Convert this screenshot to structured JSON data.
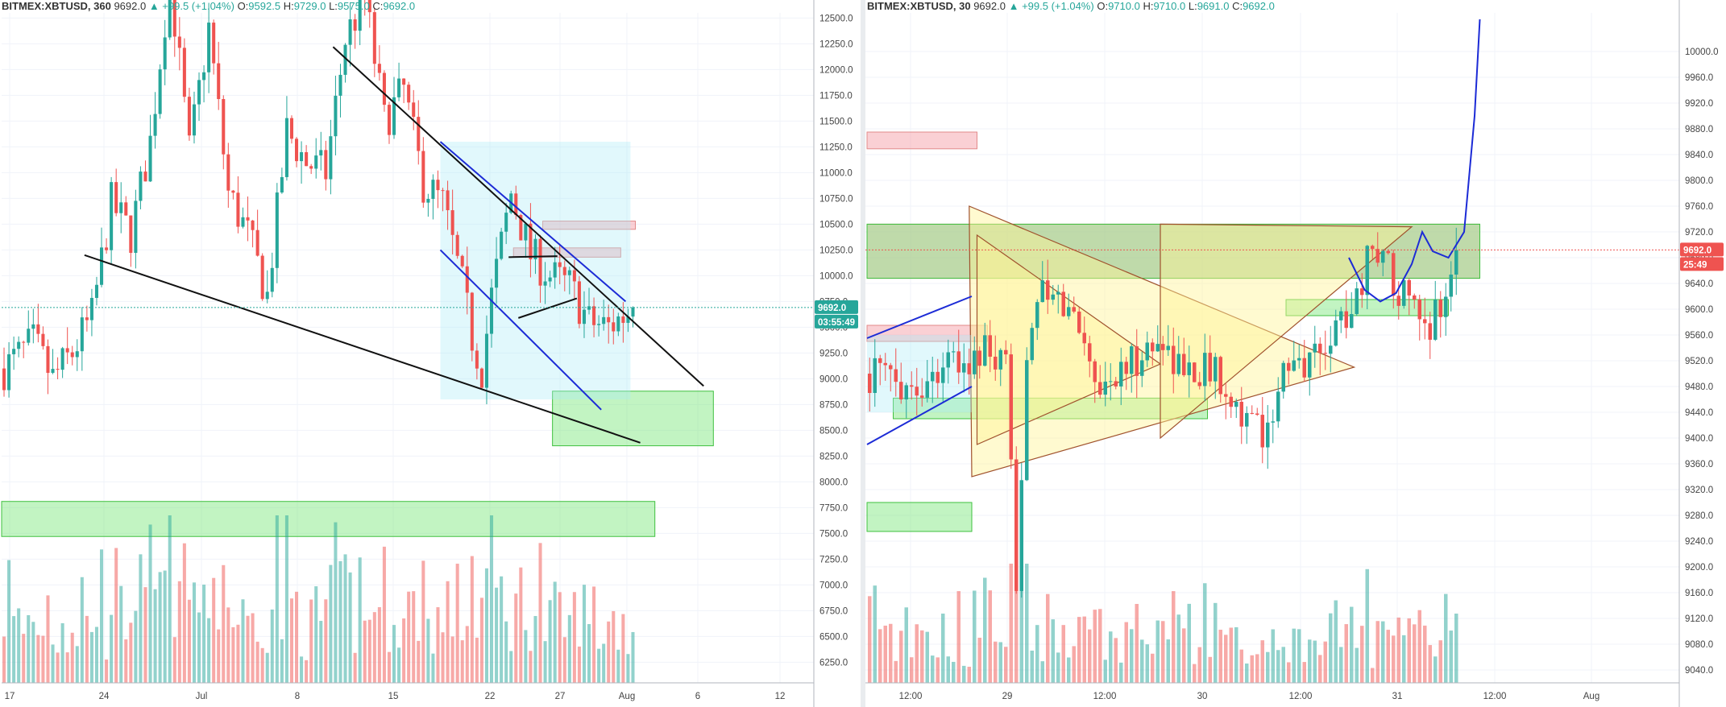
{
  "colors": {
    "up": "#26a69a",
    "down": "#ef5350",
    "grid": "#f0f3fa",
    "axis": "#b2b5be",
    "zone_green": "#7ee27e",
    "zone_red": "#f7a8a8"
  },
  "left": {
    "header": {
      "symbol": "BITMEX:XBTUSD, 360",
      "last": "9692.0",
      "change": "▲ +99.5 (+1.04%)",
      "o_label": "O:",
      "o": "9592.5",
      "h_label": "H:",
      "h": "9729.0",
      "l_label": "L:",
      "l": "9575.0",
      "c_label": "C:",
      "c": "9692.0"
    },
    "price_tag": "9692.0",
    "timer_tag": "03:55:49"
  },
  "right": {
    "header": {
      "symbol": "BITMEX:XBTUSD, 30",
      "last": "9692.0",
      "change": "▲ +99.5 (+1.04%)",
      "o_label": "O:",
      "o": "9710.0",
      "h_label": "H:",
      "h": "9710.0",
      "l_label": "L:",
      "l": "9691.0",
      "c_label": "C:",
      "c": "9692.0"
    },
    "price_tag": "9692.0",
    "timer_tag": "25:49"
  },
  "chart_data": [
    {
      "type": "candlestick",
      "timeframe": "360",
      "ylim": [
        6050,
        12550
      ],
      "y_ticks": [
        "12500.0",
        "12250.0",
        "12000.0",
        "11750.0",
        "11500.0",
        "11250.0",
        "11000.0",
        "10750.0",
        "10500.0",
        "10250.0",
        "10000.0",
        "9750.0",
        "9500.0",
        "9250.0",
        "9000.0",
        "8750.0",
        "8500.0",
        "8250.0",
        "8000.0",
        "7750.0",
        "7500.0",
        "7250.0",
        "7000.0",
        "6750.0",
        "6500.0",
        "6250.0"
      ],
      "x_ticks": [
        "17",
        "24",
        "Jul",
        "8",
        "15",
        "22",
        "27",
        "Aug",
        "6",
        "12"
      ],
      "close_path": [
        [
          0,
          9100
        ],
        [
          6,
          9350
        ],
        [
          10,
          9000
        ],
        [
          14,
          9250
        ],
        [
          18,
          9600
        ],
        [
          22,
          10700
        ],
        [
          26,
          10400
        ],
        [
          30,
          11300
        ],
        [
          34,
          12900
        ],
        [
          38,
          11200
        ],
        [
          42,
          12400
        ],
        [
          46,
          10800
        ],
        [
          50,
          10400
        ],
        [
          54,
          9800
        ],
        [
          58,
          11400
        ],
        [
          62,
          11100
        ],
        [
          66,
          11000
        ],
        [
          70,
          12300
        ],
        [
          74,
          12700
        ],
        [
          78,
          11500
        ],
        [
          82,
          11800
        ],
        [
          86,
          10900
        ],
        [
          90,
          10700
        ],
        [
          94,
          9900
        ],
        [
          96,
          9400
        ],
        [
          98,
          9100
        ],
        [
          100,
          9800
        ],
        [
          104,
          10800
        ],
        [
          108,
          10200
        ],
        [
          112,
          10000
        ],
        [
          116,
          9900
        ],
        [
          120,
          9550
        ],
        [
          124,
          9500
        ],
        [
          128,
          9650
        ],
        [
          129,
          9692
        ]
      ],
      "zones": [
        {
          "color": "green",
          "y": [
            7470,
            7810
          ],
          "x": [
            0,
            134
          ]
        },
        {
          "color": "green",
          "y": [
            8350,
            8880
          ],
          "x": [
            113,
            146
          ]
        },
        {
          "color": "red",
          "y": [
            10450,
            10530
          ],
          "x": [
            111,
            130
          ]
        },
        {
          "color": "red",
          "y": [
            10180,
            10270
          ],
          "x": [
            105,
            127
          ]
        }
      ],
      "lines": [
        {
          "color": "black",
          "from": [
            17,
            10200
          ],
          "to": [
            131,
            8380
          ]
        },
        {
          "color": "black",
          "from": [
            68,
            12220
          ],
          "to": [
            144,
            8930
          ]
        },
        {
          "color": "black",
          "from": [
            104,
            10180
          ],
          "to": [
            114,
            10190
          ]
        },
        {
          "color": "black",
          "from": [
            106,
            9590
          ],
          "to": [
            118,
            9780
          ]
        },
        {
          "color": "blue",
          "from": [
            90,
            11300
          ],
          "to": [
            128,
            9750
          ]
        },
        {
          "color": "blue",
          "from": [
            90,
            10250
          ],
          "to": [
            123,
            8700
          ]
        }
      ]
    },
    {
      "type": "candlestick",
      "timeframe": "30",
      "ylim": [
        9020,
        10060
      ],
      "y_ticks": [
        "10000.0",
        "9960.0",
        "9920.0",
        "9880.0",
        "9840.0",
        "9800.0",
        "9760.0",
        "9720.0",
        "9680.0",
        "9640.0",
        "9600.0",
        "9560.0",
        "9520.0",
        "9480.0",
        "9440.0",
        "9400.0",
        "9360.0",
        "9320.0",
        "9280.0",
        "9240.0",
        "9200.0",
        "9160.0",
        "9120.0",
        "9080.0",
        "9040.0"
      ],
      "x_ticks": [
        "12:00",
        "29",
        "12:00",
        "30",
        "12:00",
        "31",
        "12:00",
        "Aug"
      ],
      "close_path": [
        [
          0,
          9500
        ],
        [
          6,
          9490
        ],
        [
          10,
          9480
        ],
        [
          14,
          9520
        ],
        [
          18,
          9510
        ],
        [
          22,
          9530
        ],
        [
          26,
          9500
        ],
        [
          28,
          9180
        ],
        [
          30,
          9540
        ],
        [
          32,
          9620
        ],
        [
          36,
          9610
        ],
        [
          40,
          9580
        ],
        [
          44,
          9480
        ],
        [
          48,
          9500
        ],
        [
          52,
          9530
        ],
        [
          56,
          9550
        ],
        [
          60,
          9500
        ],
        [
          64,
          9510
        ],
        [
          68,
          9490
        ],
        [
          72,
          9420
        ],
        [
          76,
          9410
        ],
        [
          78,
          9490
        ],
        [
          82,
          9510
        ],
        [
          86,
          9540
        ],
        [
          90,
          9580
        ],
        [
          94,
          9640
        ],
        [
          96,
          9710
        ],
        [
          100,
          9650
        ],
        [
          104,
          9590
        ],
        [
          106,
          9560
        ],
        [
          108,
          9600
        ],
        [
          110,
          9620
        ],
        [
          112,
          9692
        ]
      ],
      "zones": [
        {
          "color": "red",
          "y": [
            9849,
            9875
          ],
          "x": [
            0,
            21
          ]
        },
        {
          "color": "red",
          "y": [
            9648,
            9732
          ],
          "x": [
            0,
            117
          ]
        },
        {
          "color": "green",
          "y": [
            9648,
            9732
          ],
          "x": [
            0,
            117
          ]
        },
        {
          "color": "green",
          "y": [
            9590,
            9615
          ],
          "x": [
            80,
            111
          ]
        },
        {
          "color": "red",
          "y": [
            9550,
            9575
          ],
          "x": [
            0,
            23
          ]
        },
        {
          "color": "green",
          "y": [
            9430,
            9462
          ],
          "x": [
            5,
            65
          ]
        },
        {
          "color": "green",
          "y": [
            9255,
            9300
          ],
          "x": [
            0,
            20
          ]
        }
      ],
      "lines": [
        {
          "color": "blue",
          "from": [
            0,
            9555
          ],
          "to": [
            20,
            9620
          ]
        },
        {
          "color": "blue",
          "from": [
            0,
            9390
          ],
          "to": [
            20,
            9480
          ]
        }
      ],
      "projection": [
        [
          92,
          9680
        ],
        [
          95,
          9630
        ],
        [
          98,
          9612
        ],
        [
          101,
          9625
        ],
        [
          104,
          9670
        ],
        [
          106,
          9720
        ],
        [
          108,
          9690
        ],
        [
          111,
          9680
        ],
        [
          114,
          9720
        ],
        [
          116,
          9900
        ],
        [
          117,
          10050
        ]
      ]
    }
  ]
}
